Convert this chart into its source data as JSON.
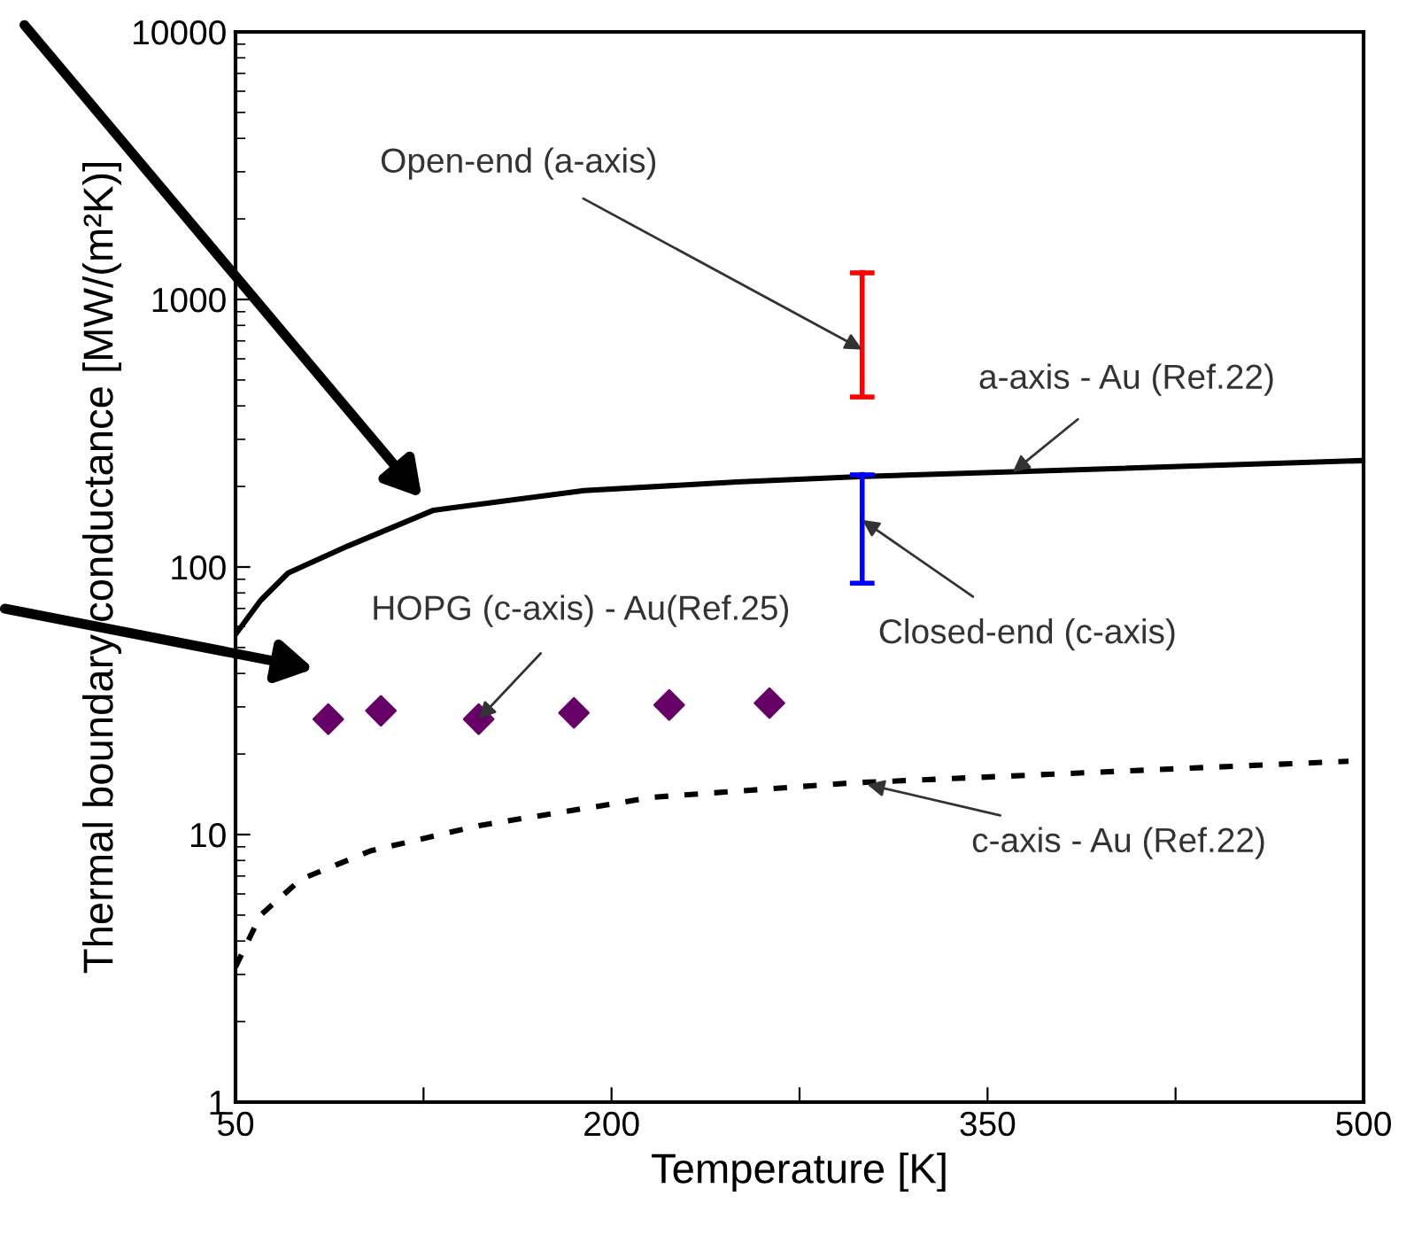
{
  "chart_data": {
    "type": "line",
    "xlabel": "Temperature [K]",
    "ylabel": "Thermal boundary conductance [MW/(m²K)]",
    "log": "y",
    "xlim": [
      50,
      500
    ],
    "ylim": [
      1,
      10000
    ],
    "xticks": [
      50,
      {
        "value": 125,
        "label": null
      },
      200,
      {
        "value": 275,
        "label": null
      },
      350,
      {
        "value": 425,
        "label": null
      },
      500
    ],
    "yticks": [
      1,
      10,
      100,
      1000,
      10000
    ],
    "grid": false,
    "legend": false,
    "series": [
      {
        "color": "#000000",
        "line_style": "solid",
        "x": [
          50,
          60,
          71,
          95,
          129,
          189,
          250,
          301,
          380,
          500
        ],
        "values": [
          56,
          75,
          95,
          120,
          163,
          193,
          208,
          218,
          230,
          250
        ]
      },
      {
        "color": "#000000",
        "line_style": "dotted",
        "x": [
          50,
          60,
          76,
          104,
          147,
          217,
          296,
          400,
          494
        ],
        "values": [
          3.2,
          5.0,
          6.8,
          8.7,
          10.8,
          13.8,
          15.6,
          17.2,
          18.8
        ]
      },
      {
        "type": "scatter",
        "color": "#660066",
        "marker": "diamond",
        "x": [
          87,
          108,
          147,
          185,
          223,
          263
        ],
        "values": [
          27,
          29,
          27,
          28.5,
          30.5,
          31
        ]
      },
      {
        "type": "scatter",
        "color": "#ff0000",
        "x": [
          300
        ],
        "values": [
          1257
        ],
        "errors": [
          [
            432,
            1257
          ]
        ]
      },
      {
        "type": "scatter",
        "color": "#0000ff",
        "x": [
          300
        ],
        "values": [
          221
        ],
        "errors": [
          [
            87,
            221
          ]
        ]
      }
    ],
    "annotations": [
      {
        "text": "Open-end (a-axis)",
        "x": 300,
        "y": 650
      },
      {
        "text": "a-axis - Au (Ref.22)",
        "x": 360,
        "y": 226
      },
      {
        "text": "Closed-end (c-axis)",
        "x": 300,
        "y": 150
      },
      {
        "text": "HOPG (c-axis) - Au(Ref.25)",
        "x": 147,
        "y": 27
      },
      {
        "text": "c-axis - Au (Ref.22)",
        "x": 302,
        "y": 15.4
      }
    ]
  }
}
